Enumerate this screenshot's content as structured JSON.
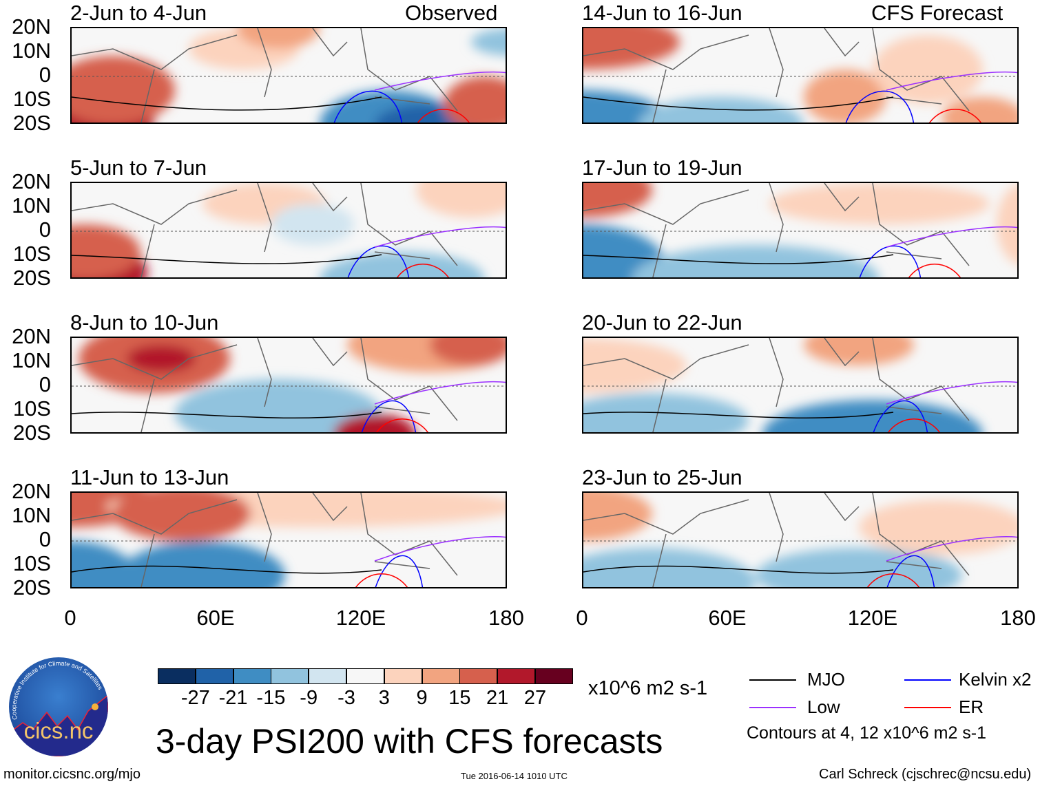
{
  "panels": {
    "left_header": "Observed",
    "right_header": "CFS Forecast",
    "observed": [
      {
        "label": "2-Jun to 4-Jun"
      },
      {
        "label": "5-Jun to 7-Jun"
      },
      {
        "label": "8-Jun to 10-Jun"
      },
      {
        "label": "11-Jun to 13-Jun"
      }
    ],
    "forecast": [
      {
        "label": "14-Jun to 16-Jun"
      },
      {
        "label": "17-Jun to 19-Jun"
      },
      {
        "label": "20-Jun to 22-Jun"
      },
      {
        "label": "23-Jun to 25-Jun"
      }
    ],
    "lat_ticks": [
      "20N",
      "10N",
      "0",
      "10S",
      "20S"
    ],
    "lon_ticks": [
      "0",
      "60E",
      "120E",
      "180"
    ]
  },
  "colorbar": {
    "colors": [
      "#0a2e60",
      "#2062a8",
      "#3f8dc3",
      "#91c3de",
      "#d2e5f0",
      "#f7f7f7",
      "#fcd3bd",
      "#f2a480",
      "#d6604d",
      "#b2182b",
      "#67001f"
    ],
    "labels": [
      "-27",
      "-21",
      "-15",
      "-9",
      "-3",
      "3",
      "9",
      "15",
      "21",
      "27"
    ],
    "units": "x10^6 m2 s-1"
  },
  "legend": {
    "items": [
      {
        "label": "MJO",
        "color": "#000000"
      },
      {
        "label": "Kelvin x2",
        "color": "#0000ff"
      },
      {
        "label": "Low",
        "color": "#9b30ff"
      },
      {
        "label": "ER",
        "color": "#ff0000"
      }
    ],
    "contours_note": "Contours at 4, 12 x10^6 m2 s-1"
  },
  "title": "3-day PSI200 with CFS forecasts",
  "logo_text": "cics.nc",
  "logo_ring_text": "Cooperative Institute for Climate and Satellites",
  "footer": {
    "url": "monitor.cicsnc.org/mjo",
    "timestamp": "Tue 2016-06-14 1010 UTC",
    "credit": "Carl Schreck (cjschrec@ncsu.edu)"
  }
}
